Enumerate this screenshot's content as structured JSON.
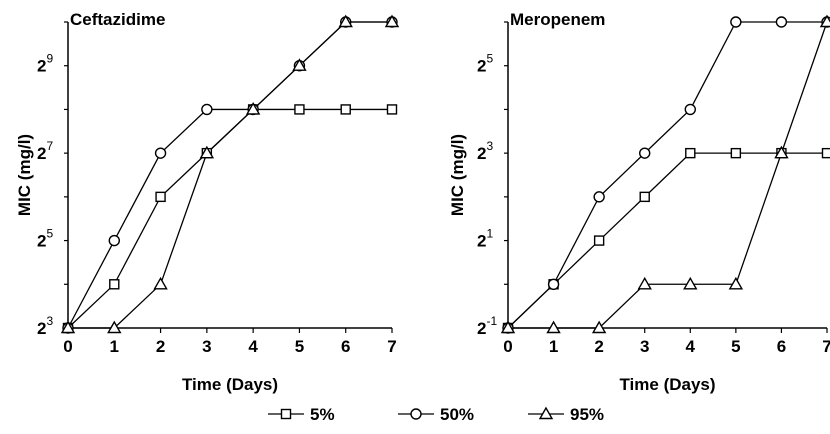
{
  "chart_data": [
    {
      "type": "line",
      "title": "Ceftazidime",
      "xlabel": "Time (Days)",
      "ylabel": "MIC (mg/l)",
      "x": [
        0,
        1,
        2,
        3,
        4,
        5,
        6,
        7
      ],
      "xlim": [
        0,
        7
      ],
      "y_scale": "log2",
      "ylim_exponent": [
        3,
        10
      ],
      "y_ticks": [
        {
          "base": "2",
          "exp": "3",
          "value": 8
        },
        {
          "base": "2",
          "exp": "5",
          "value": 32
        },
        {
          "base": "2",
          "exp": "7",
          "value": 128
        },
        {
          "base": "2",
          "exp": "9",
          "value": 512
        }
      ],
      "series": [
        {
          "name": "5%",
          "marker": "square",
          "values": [
            8,
            16,
            64,
            128,
            256,
            256,
            256,
            256
          ]
        },
        {
          "name": "50%",
          "marker": "circle",
          "values": [
            8,
            32,
            128,
            256,
            256,
            512,
            1024,
            1024
          ]
        },
        {
          "name": "95%",
          "marker": "triangle",
          "values": [
            8,
            8,
            16,
            128,
            256,
            512,
            1024,
            1024
          ]
        }
      ],
      "grid": false
    },
    {
      "type": "line",
      "title": "Meropenem",
      "xlabel": "Time (Days)",
      "ylabel": "MIC (mg/l)",
      "x": [
        0,
        1,
        2,
        3,
        4,
        5,
        6,
        7
      ],
      "xlim": [
        0,
        7
      ],
      "y_scale": "log2",
      "ylim_exponent": [
        -1,
        6
      ],
      "y_ticks": [
        {
          "base": "2",
          "exp": "-1",
          "value": 0.5
        },
        {
          "base": "2",
          "exp": "1",
          "value": 2
        },
        {
          "base": "2",
          "exp": "3",
          "value": 8
        },
        {
          "base": "2",
          "exp": "5",
          "value": 32
        }
      ],
      "series": [
        {
          "name": "5%",
          "marker": "square",
          "values": [
            0.5,
            1,
            2,
            4,
            8,
            8,
            8,
            8
          ]
        },
        {
          "name": "50%",
          "marker": "circle",
          "values": [
            0.5,
            1,
            4,
            8,
            16,
            64,
            64,
            64
          ]
        },
        {
          "name": "95%",
          "marker": "triangle",
          "values": [
            0.5,
            0.5,
            0.5,
            1,
            1,
            1,
            8,
            64
          ]
        }
      ],
      "grid": false
    }
  ],
  "legend": {
    "placement": "bottom-center",
    "entries": [
      {
        "label": "5%",
        "marker": "square"
      },
      {
        "label": "50%",
        "marker": "circle"
      },
      {
        "label": "95%",
        "marker": "triangle"
      }
    ]
  },
  "colors": {
    "line": "#000000",
    "marker_fill": "#ffffff",
    "background": "#ffffff"
  }
}
